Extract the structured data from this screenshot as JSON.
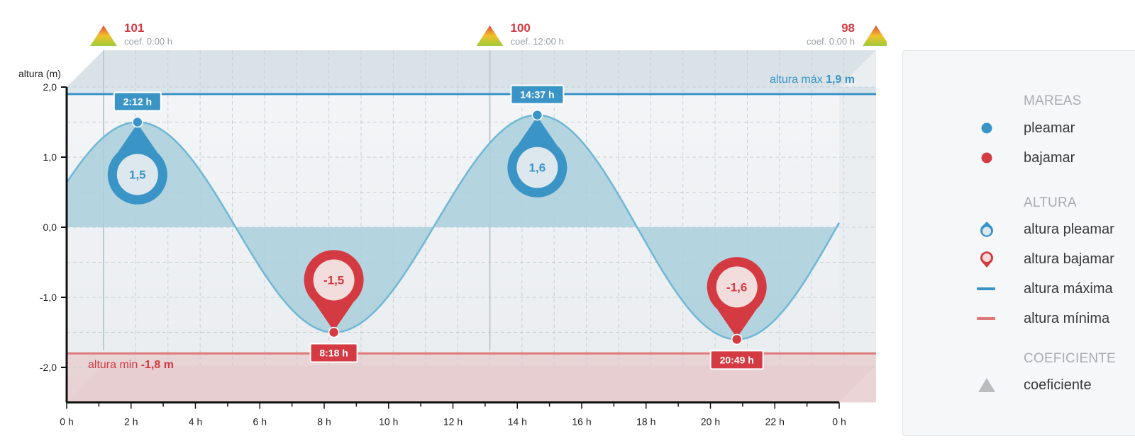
{
  "chart_data": {
    "type": "area",
    "ylabel": "altura (m)",
    "xlim": [
      0,
      24
    ],
    "ylim": [
      -2.5,
      2.0
    ],
    "y_ticks": [
      2.0,
      1.0,
      0.0,
      -1.0,
      -2.0
    ],
    "y_tick_labels": [
      "2,0",
      "1,0",
      "0,0",
      "-1,0",
      "-2,0"
    ],
    "x_ticks": [
      0,
      2,
      4,
      6,
      8,
      10,
      12,
      14,
      16,
      18,
      20,
      22,
      24
    ],
    "x_tick_labels": [
      "0 h",
      "2 h",
      "4 h",
      "6 h",
      "8 h",
      "10 h",
      "12 h",
      "14 h",
      "16 h",
      "18 h",
      "20 h",
      "22 h",
      "0 h"
    ],
    "grid": true,
    "series": [
      {
        "name": "pleamar",
        "color": "#3a95c6",
        "points": [
          {
            "x": 2.2,
            "y": 1.5,
            "time": "2:12 h",
            "value": "1,5"
          },
          {
            "x": 14.62,
            "y": 1.6,
            "time": "14:37 h",
            "value": "1,6"
          }
        ]
      },
      {
        "name": "bajamar",
        "color": "#d33a41",
        "points": [
          {
            "x": 8.3,
            "y": -1.5,
            "time": "8:18 h",
            "value": "-1,5"
          },
          {
            "x": 20.82,
            "y": -1.6,
            "time": "20:49 h",
            "value": "-1,6"
          }
        ]
      }
    ],
    "max_line": {
      "y": 1.9,
      "prefix": "altura máx",
      "value": "1,9 m",
      "color": "#3a95c6"
    },
    "min_line": {
      "y": -1.8,
      "prefix": "altura min",
      "value": "-1,8 m",
      "color": "#d33a41"
    },
    "coefficients": [
      {
        "x": 0,
        "value": "101",
        "label": "coef. 0:00 h",
        "align": "left"
      },
      {
        "x": 12,
        "value": "100",
        "label": "coef. 12:00 h",
        "align": "left"
      },
      {
        "x": 24,
        "value": "98",
        "label": "coef. 0:00 h",
        "align": "right"
      }
    ]
  },
  "legend": {
    "groups": [
      {
        "title": "MAREAS",
        "items": [
          {
            "icon": "pleamar-dot-icon",
            "label": "pleamar"
          },
          {
            "icon": "bajamar-dot-icon",
            "label": "bajamar"
          }
        ]
      },
      {
        "title": "ALTURA",
        "items": [
          {
            "icon": "altura-pleamar-marker-icon",
            "label": "altura pleamar"
          },
          {
            "icon": "altura-bajamar-marker-icon",
            "label": "altura bajamar"
          },
          {
            "icon": "altura-maxima-line-icon",
            "label": "altura máxima"
          },
          {
            "icon": "altura-minima-line-icon",
            "label": "altura mínima"
          }
        ]
      },
      {
        "title": "COEFICIENTE",
        "items": [
          {
            "icon": "coeficiente-triangle-icon",
            "label": "coeficiente"
          }
        ]
      }
    ]
  }
}
